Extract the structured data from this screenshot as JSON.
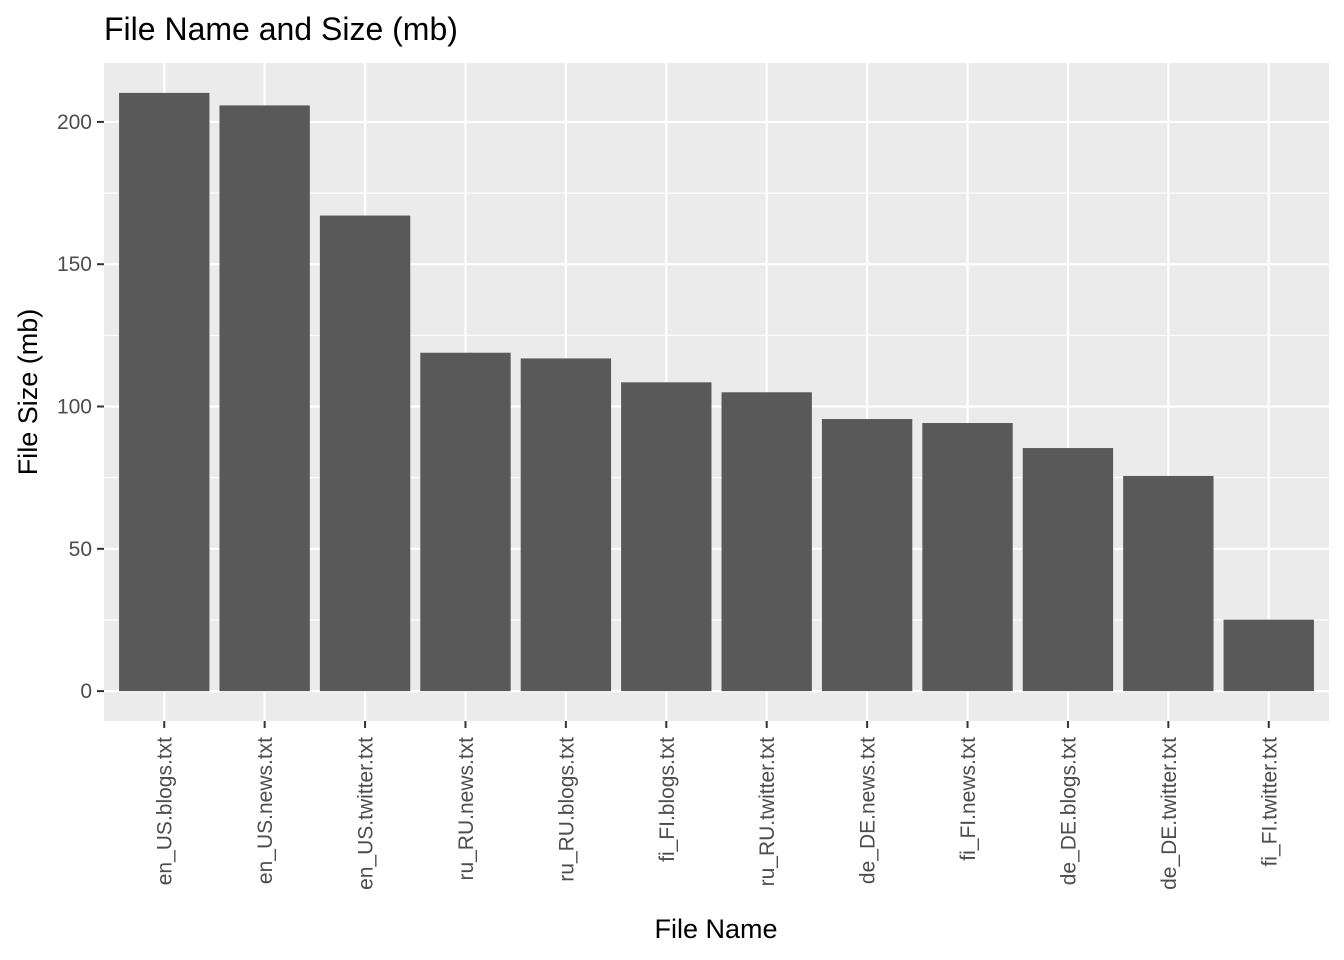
{
  "chart_data": {
    "type": "bar",
    "title": "File Name and Size (mb)",
    "xlabel": "File Name",
    "ylabel": "File Size (mb)",
    "categories": [
      "en_US.blogs.txt",
      "en_US.news.txt",
      "en_US.twitter.txt",
      "ru_RU.news.txt",
      "ru_RU.blogs.txt",
      "fi_FI.blogs.txt",
      "ru_RU.twitter.txt",
      "de_DE.news.txt",
      "fi_FI.news.txt",
      "de_DE.blogs.txt",
      "de_DE.twitter.txt",
      "fi_FI.twitter.txt"
    ],
    "values": [
      210.2,
      205.8,
      167.1,
      118.9,
      116.9,
      108.5,
      105.0,
      95.6,
      94.2,
      85.4,
      75.6,
      25.1
    ],
    "ylim": [
      -10.5,
      220.7
    ],
    "yticks": [
      0,
      50,
      100,
      150,
      200
    ],
    "grid": true,
    "colors": {
      "bar": "#595959",
      "panel": "#ebebeb",
      "grid_major": "#ffffff",
      "tick_text": "#4d4d4d"
    }
  }
}
